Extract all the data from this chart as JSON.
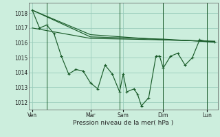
{
  "background_color": "#cceedd",
  "grid_color": "#99ccbb",
  "line_color": "#1a5c2a",
  "marker_color": "#1a5c2a",
  "xlabel": "Pression niveau de la mer( hPa )",
  "ylim": [
    1011.5,
    1018.7
  ],
  "yticks": [
    1012,
    1013,
    1014,
    1015,
    1016,
    1017,
    1018
  ],
  "day_labels": [
    "Ven",
    "Mar",
    "Sam",
    "Dim",
    "Lun"
  ],
  "day_positions": [
    0.5,
    8.5,
    13.0,
    18.5,
    24.5
  ],
  "vline_positions": [
    2.5,
    12.5,
    18.5,
    24.5
  ],
  "xlim": [
    0,
    26
  ],
  "series1": {
    "x": [
      0.5,
      1.5,
      2.5,
      3.5,
      4.5,
      5.5,
      6.5,
      7.5,
      8.5,
      9.5,
      10.5,
      11.5,
      12.5,
      13.0,
      13.5,
      14.5,
      15.0,
      15.5,
      16.5,
      17.5,
      18.0,
      18.5,
      19.5,
      20.5,
      21.5,
      22.5,
      23.5,
      24.5,
      25.5
    ],
    "y": [
      1018.2,
      1017.0,
      1017.2,
      1016.6,
      1015.1,
      1013.9,
      1014.2,
      1014.1,
      1013.3,
      1012.9,
      1014.5,
      1013.9,
      1012.7,
      1013.9,
      1012.7,
      1012.9,
      1012.5,
      1011.75,
      1012.3,
      1015.1,
      1015.1,
      1014.3,
      1015.1,
      1015.3,
      1014.5,
      1015.0,
      1016.2,
      1016.1,
      1016.05
    ]
  },
  "series2": {
    "x": [
      0.5,
      8.5,
      18.5,
      25.5
    ],
    "y": [
      1018.2,
      1016.55,
      1016.2,
      1016.1
    ]
  },
  "series3": {
    "x": [
      0.5,
      8.5,
      18.5,
      25.5
    ],
    "y": [
      1018.2,
      1016.4,
      1016.25,
      1016.05
    ]
  },
  "series4": {
    "x": [
      0.5,
      8.5,
      18.5,
      25.5
    ],
    "y": [
      1017.0,
      1016.3,
      1016.2,
      1016.1
    ]
  }
}
